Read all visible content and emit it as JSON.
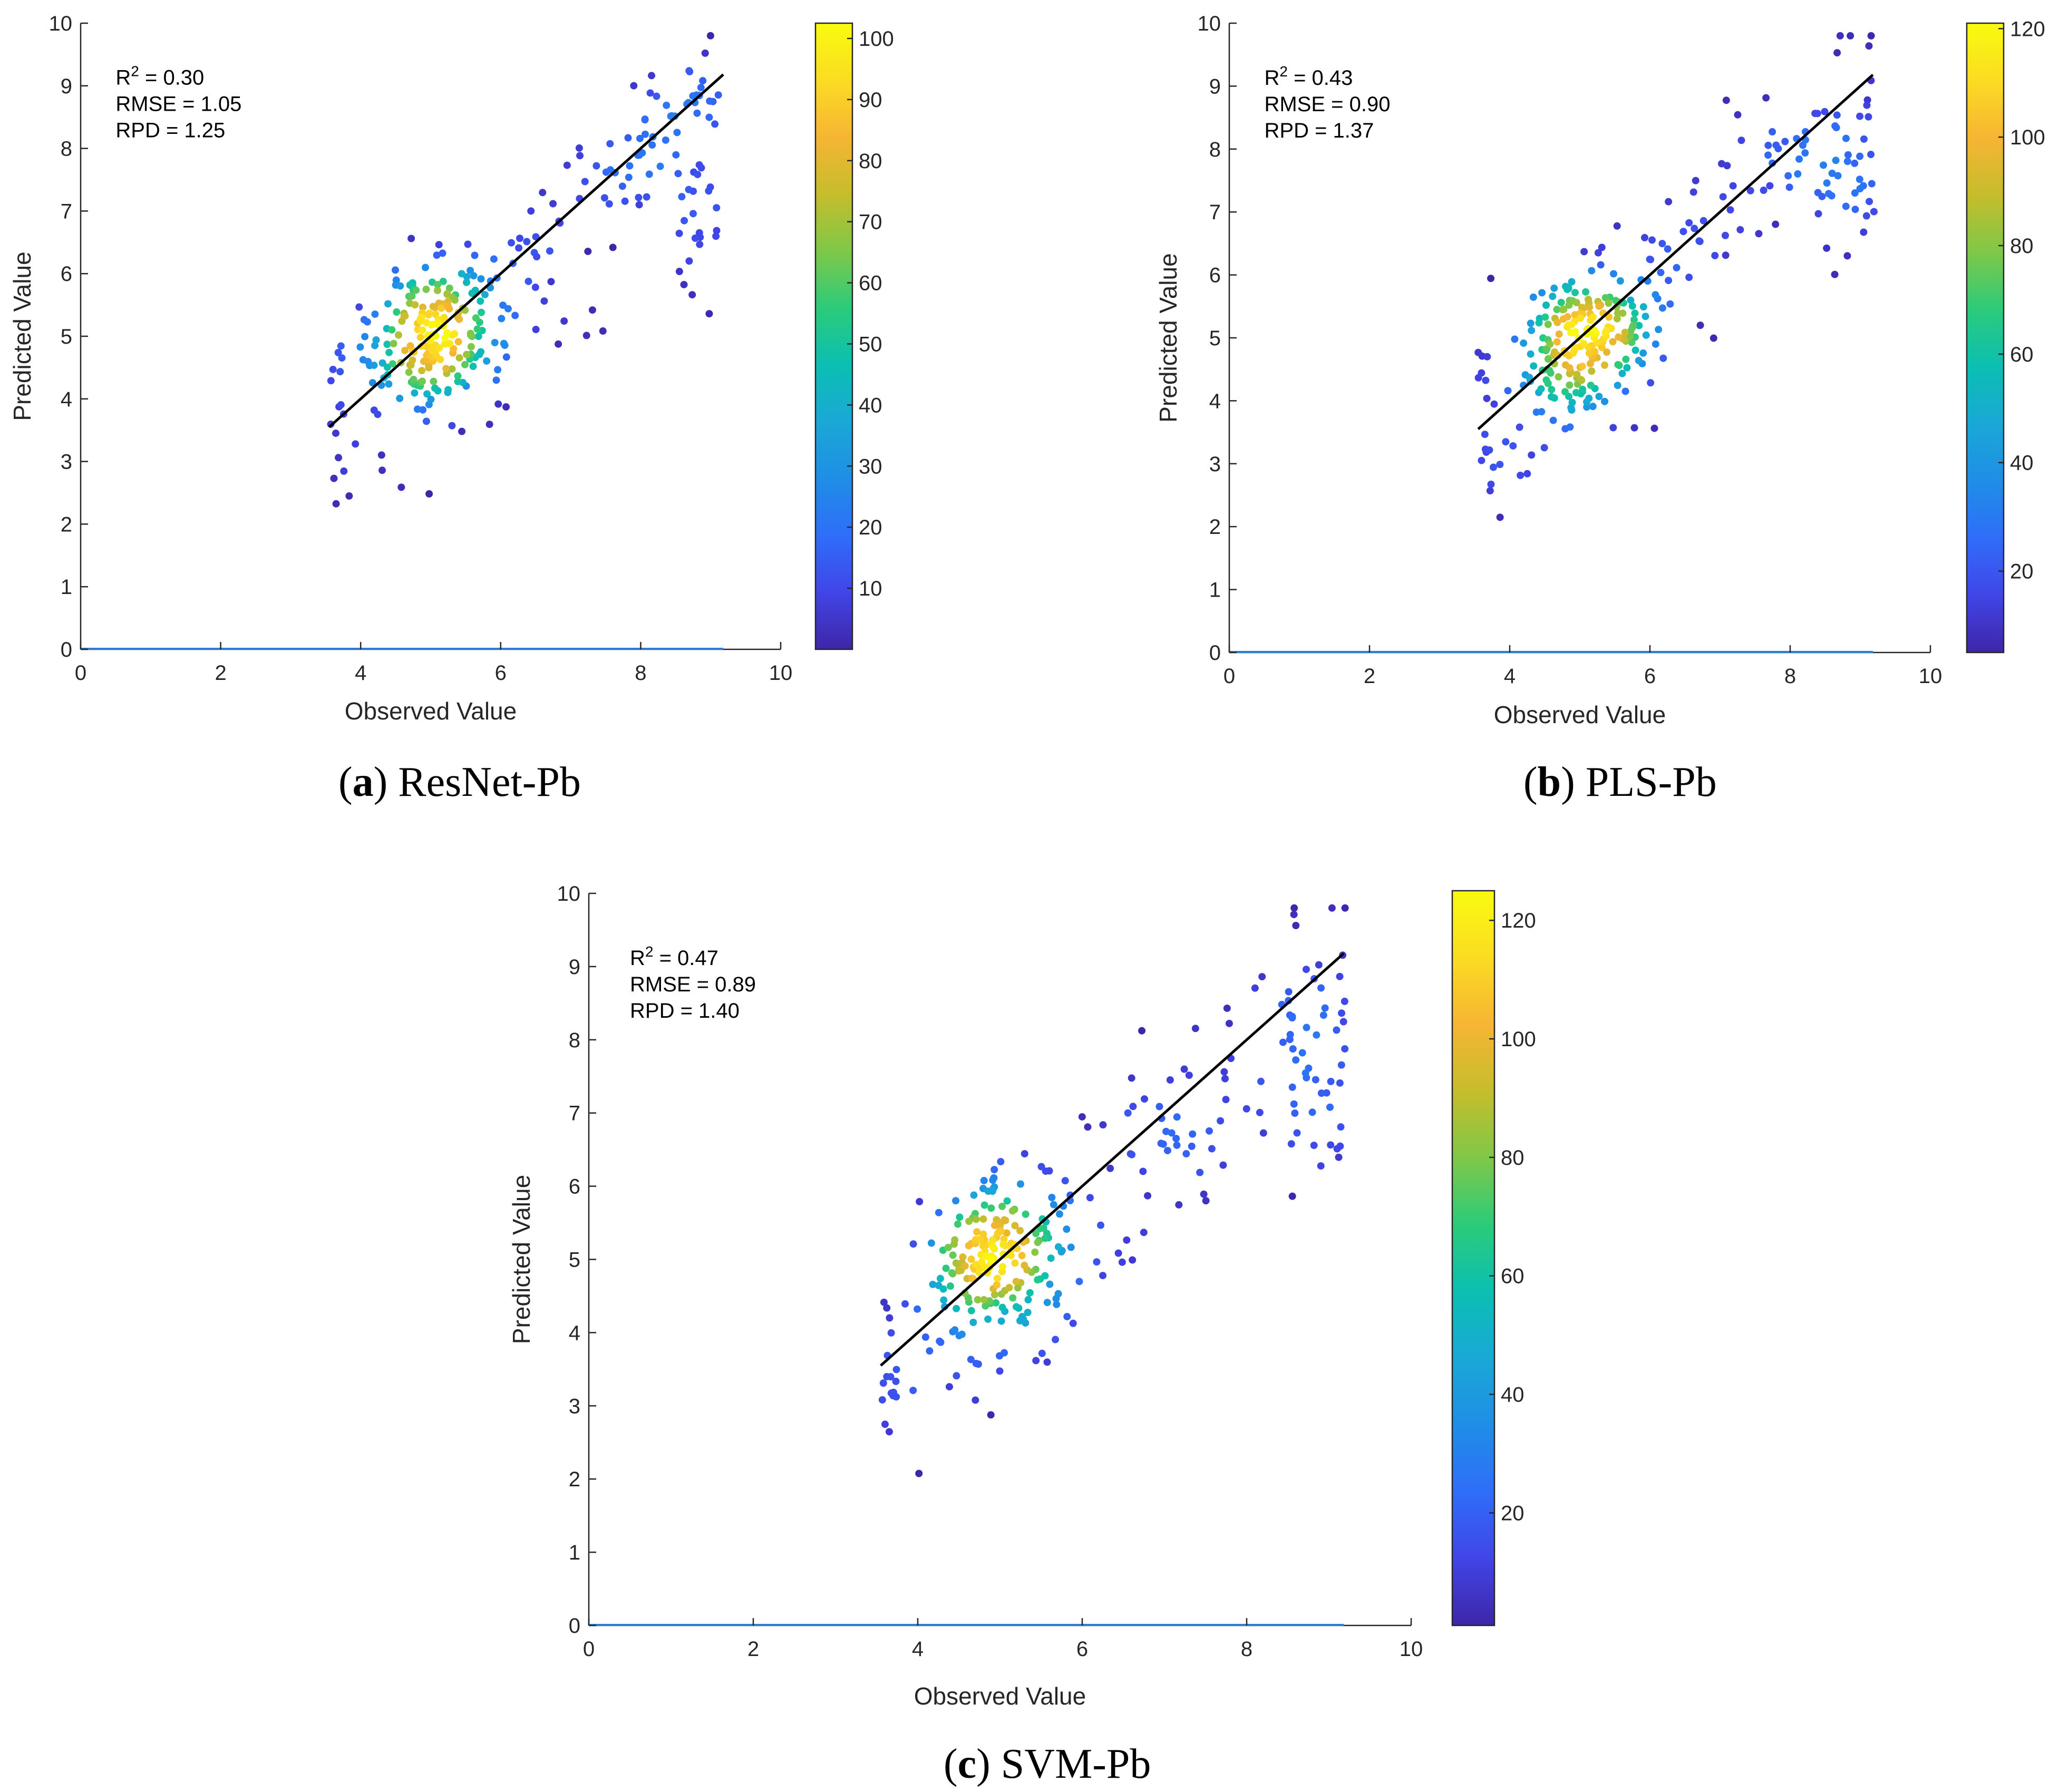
{
  "figure": {
    "background": "#ffffff"
  },
  "colormap": [
    "#3e26a8",
    "#4145e7",
    "#2f6ef9",
    "#1f8ee6",
    "#1aa8d6",
    "#0bbfb2",
    "#2ccb7a",
    "#7fc848",
    "#c6bd2c",
    "#f6b533",
    "#fbdc23",
    "#f9fb0e"
  ],
  "chart_data": [
    {
      "id": "a",
      "type": "scatter",
      "caption_letter": "a",
      "caption_text": "ResNet-Pb",
      "xlabel": "Observed Value",
      "ylabel": "Predicted Value",
      "xlim": [
        0,
        10
      ],
      "ylim": [
        0,
        10
      ],
      "xticks": [
        0,
        2,
        4,
        6,
        8,
        10
      ],
      "yticks": [
        0,
        1,
        2,
        3,
        4,
        5,
        6,
        7,
        8,
        9,
        10
      ],
      "stats": {
        "r2_label": "R",
        "r2_sup": "2",
        "r2_value": " = 0.30",
        "rmse": "RMSE = 1.05",
        "rpd": "RPD = 1.25"
      },
      "fit_line": {
        "x": [
          3.55,
          9.18
        ],
        "y": [
          3.55,
          9.18
        ]
      },
      "colorbar": {
        "min": 0,
        "max": 102.5,
        "ticks": [
          10,
          20,
          30,
          40,
          50,
          60,
          70,
          80,
          90,
          100
        ]
      },
      "points_seed": 17
    },
    {
      "id": "b",
      "type": "scatter",
      "caption_letter": "b",
      "caption_text": "PLS-Pb",
      "xlabel": "Observed Value",
      "ylabel": "Predicted Value",
      "xlim": [
        0,
        10
      ],
      "ylim": [
        0,
        10
      ],
      "xticks": [
        0,
        2,
        4,
        6,
        8,
        10
      ],
      "yticks": [
        0,
        1,
        2,
        3,
        4,
        5,
        6,
        7,
        8,
        9,
        10
      ],
      "stats": {
        "r2_label": "R",
        "r2_sup": "2",
        "r2_value": " = 0.43",
        "rmse": "RMSE = 0.90",
        "rpd": "RPD = 1.37"
      },
      "fit_line": {
        "x": [
          3.55,
          9.18
        ],
        "y": [
          3.55,
          9.18
        ]
      },
      "colorbar": {
        "min": 5,
        "max": 121,
        "ticks": [
          20,
          40,
          60,
          80,
          100,
          120
        ]
      },
      "points_seed": 29
    },
    {
      "id": "c",
      "type": "scatter",
      "caption_letter": "c",
      "caption_text": "SVM-Pb",
      "xlabel": "Observed Value",
      "ylabel": "Predicted Value",
      "xlim": [
        0,
        10
      ],
      "ylim": [
        0,
        10
      ],
      "xticks": [
        0,
        2,
        4,
        6,
        8,
        10
      ],
      "yticks": [
        0,
        1,
        2,
        3,
        4,
        5,
        6,
        7,
        8,
        9,
        10
      ],
      "stats": {
        "r2_label": "R",
        "r2_sup": "2",
        "r2_value": " = 0.47",
        "rmse": "RMSE = 0.89",
        "rpd": "RPD = 1.40"
      },
      "fit_line": {
        "x": [
          3.55,
          9.18
        ],
        "y": [
          3.55,
          9.18
        ]
      },
      "colorbar": {
        "min": 1,
        "max": 125,
        "ticks": [
          20,
          40,
          60,
          80,
          100,
          120
        ]
      },
      "points_seed": 41
    }
  ]
}
